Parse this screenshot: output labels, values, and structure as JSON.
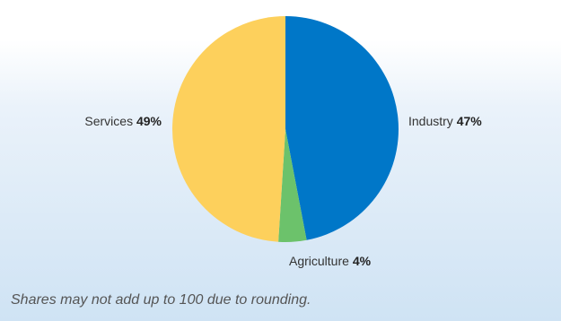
{
  "chart_data": {
    "type": "pie",
    "slices": [
      {
        "name": "Industry",
        "value": 47,
        "value_label": "47%",
        "color": "#0077c8"
      },
      {
        "name": "Agriculture",
        "value": 4,
        "value_label": "4%",
        "color": "#6cc26b"
      },
      {
        "name": "Services",
        "value": 49,
        "value_label": "49%",
        "color": "#fdd05c"
      }
    ]
  },
  "footnote": "Shares may not add up to 100 due to rounding."
}
